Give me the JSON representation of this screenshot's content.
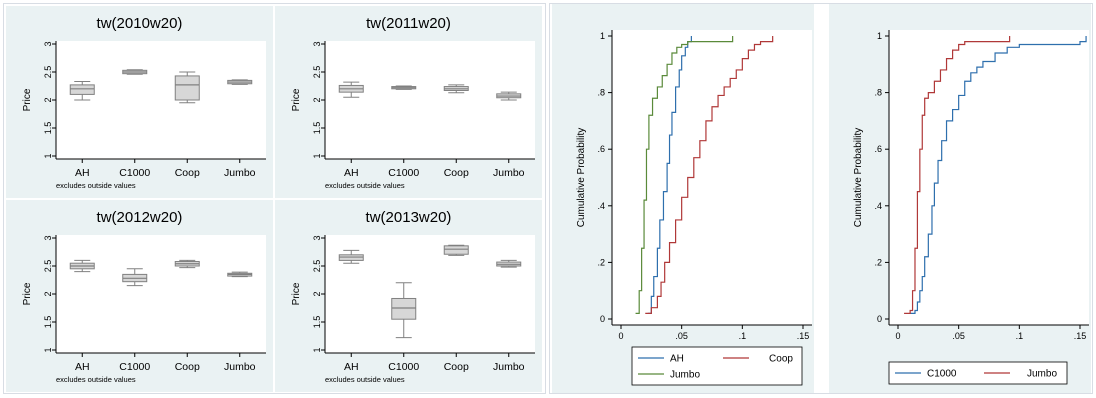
{
  "chart_data": [
    {
      "type": "box",
      "title": "tw(2010w20)",
      "ylabel": "Price",
      "note": "excludes outside values",
      "ylim": [
        1,
        3
      ],
      "yticks": [
        "1",
        "1.5",
        "2",
        "2.5",
        "3"
      ],
      "categories": [
        "AH",
        "C1000",
        "Coop",
        "Jumbo"
      ],
      "boxes": [
        {
          "min": 2.0,
          "q1": 2.1,
          "median": 2.2,
          "q3": 2.27,
          "max": 2.33
        },
        {
          "min": 2.46,
          "q1": 2.47,
          "median": 2.5,
          "q3": 2.53,
          "max": 2.54
        },
        {
          "min": 1.95,
          "q1": 2.0,
          "median": 2.27,
          "q3": 2.43,
          "max": 2.5
        },
        {
          "min": 2.28,
          "q1": 2.29,
          "median": 2.32,
          "q3": 2.35,
          "max": 2.36
        }
      ]
    },
    {
      "type": "box",
      "title": "tw(2011w20)",
      "ylabel": "Price",
      "note": "excludes outside values",
      "ylim": [
        1,
        3
      ],
      "yticks": [
        "1",
        "1.5",
        "2",
        "2.5",
        "3"
      ],
      "categories": [
        "AH",
        "C1000",
        "Coop",
        "Jumbo"
      ],
      "boxes": [
        {
          "min": 2.05,
          "q1": 2.14,
          "median": 2.2,
          "q3": 2.26,
          "max": 2.32
        },
        {
          "min": 2.19,
          "q1": 2.2,
          "median": 2.22,
          "q3": 2.24,
          "max": 2.25
        },
        {
          "min": 2.13,
          "q1": 2.17,
          "median": 2.2,
          "q3": 2.24,
          "max": 2.27
        },
        {
          "min": 2.0,
          "q1": 2.04,
          "median": 2.07,
          "q3": 2.11,
          "max": 2.14
        }
      ]
    },
    {
      "type": "box",
      "title": "tw(2012w20)",
      "ylabel": "Price",
      "note": "excludes outside values",
      "ylim": [
        1,
        3
      ],
      "yticks": [
        "1",
        "1.5",
        "2",
        "2.5",
        "3"
      ],
      "categories": [
        "AH",
        "C1000",
        "Coop",
        "Jumbo"
      ],
      "boxes": [
        {
          "min": 2.4,
          "q1": 2.45,
          "median": 2.5,
          "q3": 2.55,
          "max": 2.6
        },
        {
          "min": 2.15,
          "q1": 2.22,
          "median": 2.28,
          "q3": 2.35,
          "max": 2.45
        },
        {
          "min": 2.47,
          "q1": 2.5,
          "median": 2.54,
          "q3": 2.58,
          "max": 2.6
        },
        {
          "min": 2.31,
          "q1": 2.32,
          "median": 2.35,
          "q3": 2.37,
          "max": 2.39
        }
      ]
    },
    {
      "type": "box",
      "title": "tw(2013w20)",
      "ylabel": "Price",
      "note": "excludes outside values",
      "ylim": [
        1,
        3
      ],
      "yticks": [
        "1",
        "1.5",
        "2",
        "2.5",
        "3"
      ],
      "categories": [
        "AH",
        "C1000",
        "Coop",
        "Jumbo"
      ],
      "boxes": [
        {
          "min": 2.55,
          "q1": 2.6,
          "median": 2.66,
          "q3": 2.7,
          "max": 2.78
        },
        {
          "min": 1.22,
          "q1": 1.55,
          "median": 1.75,
          "q3": 1.92,
          "max": 2.2
        },
        {
          "min": 2.69,
          "q1": 2.71,
          "median": 2.8,
          "q3": 2.86,
          "max": 2.87
        },
        {
          "min": 2.48,
          "q1": 2.5,
          "median": 2.53,
          "q3": 2.57,
          "max": 2.6
        }
      ]
    },
    {
      "type": "line",
      "ylabel": "Cumulative Probability",
      "xlim": [
        0,
        0.15
      ],
      "ylim": [
        0,
        1
      ],
      "xticks": [
        "0",
        ".05",
        ".1",
        ".15"
      ],
      "yticks": [
        "0",
        ".2",
        ".4",
        ".6",
        ".8",
        "1"
      ],
      "legend": "bottom",
      "series": [
        {
          "name": "AH",
          "color": "#2e6fad",
          "x": [
            0.022,
            0.025,
            0.027,
            0.03,
            0.032,
            0.035,
            0.038,
            0.04,
            0.042,
            0.045,
            0.048,
            0.05,
            0.053,
            0.055,
            0.058
          ],
          "y": [
            0.02,
            0.08,
            0.15,
            0.25,
            0.35,
            0.45,
            0.55,
            0.65,
            0.73,
            0.82,
            0.88,
            0.93,
            0.96,
            0.98,
            1.0
          ]
        },
        {
          "name": "Coop",
          "color": "#b03838",
          "x": [
            0.02,
            0.025,
            0.03,
            0.033,
            0.036,
            0.04,
            0.045,
            0.05,
            0.055,
            0.06,
            0.065,
            0.07,
            0.075,
            0.08,
            0.085,
            0.09,
            0.095,
            0.1,
            0.105,
            0.11,
            0.115,
            0.12,
            0.125
          ],
          "y": [
            0.02,
            0.04,
            0.08,
            0.13,
            0.2,
            0.27,
            0.35,
            0.43,
            0.5,
            0.57,
            0.63,
            0.7,
            0.75,
            0.79,
            0.82,
            0.85,
            0.88,
            0.92,
            0.95,
            0.97,
            0.98,
            0.98,
            1.0
          ]
        },
        {
          "name": "Jumbo",
          "color": "#5a8a3a",
          "x": [
            0.012,
            0.015,
            0.017,
            0.019,
            0.021,
            0.023,
            0.026,
            0.03,
            0.034,
            0.038,
            0.042,
            0.046,
            0.05,
            0.055,
            0.06,
            0.07,
            0.08,
            0.092
          ],
          "y": [
            0.02,
            0.1,
            0.25,
            0.42,
            0.6,
            0.72,
            0.78,
            0.82,
            0.86,
            0.9,
            0.94,
            0.96,
            0.97,
            0.98,
            0.98,
            0.98,
            0.98,
            1.0
          ]
        }
      ]
    },
    {
      "type": "line",
      "ylabel": "Cumulative Probability",
      "xlim": [
        0,
        0.15
      ],
      "ylim": [
        0,
        1
      ],
      "xticks": [
        "0",
        ".05",
        ".1",
        ".15"
      ],
      "yticks": [
        "0",
        ".2",
        ".4",
        ".6",
        ".8",
        "1"
      ],
      "legend": "bottom",
      "series": [
        {
          "name": "C1000",
          "color": "#2e6fad",
          "x": [
            0.01,
            0.014,
            0.016,
            0.018,
            0.02,
            0.022,
            0.025,
            0.028,
            0.03,
            0.033,
            0.036,
            0.04,
            0.045,
            0.05,
            0.055,
            0.06,
            0.065,
            0.07,
            0.08,
            0.09,
            0.1,
            0.11,
            0.12,
            0.13,
            0.14,
            0.15,
            0.155
          ],
          "y": [
            0.02,
            0.03,
            0.06,
            0.1,
            0.15,
            0.22,
            0.3,
            0.4,
            0.48,
            0.56,
            0.63,
            0.7,
            0.74,
            0.79,
            0.84,
            0.87,
            0.89,
            0.91,
            0.94,
            0.96,
            0.97,
            0.97,
            0.97,
            0.97,
            0.97,
            0.98,
            1.0
          ]
        },
        {
          "name": "Jumbo",
          "color": "#b03838",
          "x": [
            0.005,
            0.01,
            0.012,
            0.014,
            0.016,
            0.018,
            0.02,
            0.022,
            0.025,
            0.03,
            0.035,
            0.04,
            0.045,
            0.05,
            0.055,
            0.06,
            0.07,
            0.08,
            0.092
          ],
          "y": [
            0.02,
            0.03,
            0.1,
            0.25,
            0.45,
            0.6,
            0.72,
            0.78,
            0.8,
            0.84,
            0.88,
            0.92,
            0.95,
            0.97,
            0.98,
            0.98,
            0.98,
            0.98,
            1.0
          ]
        }
      ]
    }
  ]
}
